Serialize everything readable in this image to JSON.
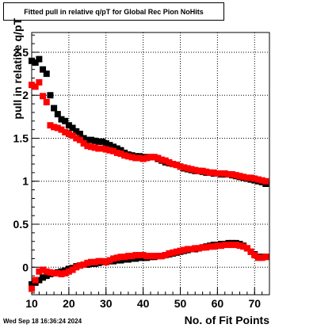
{
  "chart_data": {
    "type": "scatter",
    "title": "Fitted pull in relative q/pT for Global Rec Pion NoHits",
    "xlabel": "No. of Fit Points",
    "ylabel": "pull in relative q/pT",
    "xlim": [
      10,
      74
    ],
    "ylim": [
      -0.32,
      2.73
    ],
    "xticks": [
      10,
      20,
      30,
      40,
      50,
      60,
      70
    ],
    "yticks": [
      0,
      0.5,
      1,
      1.5,
      2,
      2.5
    ],
    "ytick_labels": [
      "0",
      "0.5",
      "1",
      "1.5",
      "2",
      "2.5"
    ],
    "grid": true,
    "series": [
      {
        "color": "#000000",
        "points": [
          [
            10,
            2.4
          ],
          [
            11,
            2.38
          ],
          [
            12,
            2.42
          ],
          [
            13,
            2.3
          ],
          [
            14,
            2.25
          ],
          [
            15,
            2.0
          ],
          [
            16,
            1.85
          ],
          [
            17,
            1.78
          ],
          [
            18,
            1.72
          ],
          [
            19,
            1.7
          ],
          [
            20,
            1.65
          ],
          [
            21,
            1.62
          ],
          [
            22,
            1.58
          ],
          [
            23,
            1.55
          ],
          [
            24,
            1.5
          ],
          [
            25,
            1.48
          ],
          [
            26,
            1.48
          ],
          [
            27,
            1.47
          ],
          [
            28,
            1.46
          ],
          [
            29,
            1.46
          ],
          [
            30,
            1.44
          ],
          [
            31,
            1.42
          ],
          [
            32,
            1.4
          ],
          [
            33,
            1.38
          ],
          [
            34,
            1.36
          ],
          [
            35,
            1.33
          ],
          [
            36,
            1.31
          ],
          [
            37,
            1.3
          ],
          [
            38,
            1.29
          ],
          [
            39,
            1.29
          ],
          [
            40,
            1.28
          ],
          [
            41,
            1.28
          ],
          [
            42,
            1.28
          ],
          [
            43,
            1.28
          ],
          [
            44,
            1.26
          ],
          [
            45,
            1.24
          ],
          [
            46,
            1.22
          ],
          [
            47,
            1.21
          ],
          [
            48,
            1.2
          ],
          [
            49,
            1.19
          ],
          [
            50,
            1.17
          ],
          [
            51,
            1.15
          ],
          [
            52,
            1.14
          ],
          [
            53,
            1.13
          ],
          [
            54,
            1.12
          ],
          [
            55,
            1.12
          ],
          [
            56,
            1.11
          ],
          [
            57,
            1.1
          ],
          [
            58,
            1.1
          ],
          [
            59,
            1.09
          ],
          [
            60,
            1.09
          ],
          [
            61,
            1.08
          ],
          [
            62,
            1.08
          ],
          [
            63,
            1.08
          ],
          [
            64,
            1.07
          ],
          [
            65,
            1.06
          ],
          [
            66,
            1.05
          ],
          [
            67,
            1.04
          ],
          [
            68,
            1.03
          ],
          [
            69,
            1.02
          ],
          [
            70,
            1.01
          ],
          [
            71,
            1.0
          ],
          [
            72,
            0.99
          ],
          [
            73,
            0.97
          ]
        ],
        "lower_points": [
          [
            10,
            -0.2
          ],
          [
            11,
            -0.18
          ],
          [
            12,
            -0.15
          ],
          [
            13,
            -0.12
          ],
          [
            14,
            -0.1
          ],
          [
            15,
            -0.08
          ],
          [
            16,
            -0.07
          ],
          [
            17,
            -0.06
          ],
          [
            18,
            -0.05
          ],
          [
            19,
            -0.04
          ],
          [
            20,
            -0.02
          ],
          [
            21,
            -0.01
          ],
          [
            22,
            0.01
          ],
          [
            23,
            0.02
          ],
          [
            24,
            0.03
          ],
          [
            25,
            0.03
          ],
          [
            26,
            0.04
          ],
          [
            27,
            0.04
          ],
          [
            28,
            0.05
          ],
          [
            29,
            0.06
          ],
          [
            30,
            0.06
          ],
          [
            31,
            0.07
          ],
          [
            32,
            0.07
          ],
          [
            33,
            0.08
          ],
          [
            34,
            0.08
          ],
          [
            35,
            0.09
          ],
          [
            36,
            0.09
          ],
          [
            37,
            0.1
          ],
          [
            38,
            0.1
          ],
          [
            39,
            0.11
          ],
          [
            40,
            0.11
          ],
          [
            41,
            0.11
          ],
          [
            42,
            0.12
          ],
          [
            43,
            0.12
          ],
          [
            44,
            0.13
          ],
          [
            45,
            0.13
          ],
          [
            46,
            0.14
          ],
          [
            47,
            0.15
          ],
          [
            48,
            0.16
          ],
          [
            49,
            0.17
          ],
          [
            50,
            0.18
          ],
          [
            51,
            0.19
          ],
          [
            52,
            0.2
          ],
          [
            53,
            0.21
          ],
          [
            54,
            0.21
          ],
          [
            55,
            0.22
          ],
          [
            56,
            0.23
          ],
          [
            57,
            0.24
          ],
          [
            58,
            0.25
          ],
          [
            59,
            0.26
          ],
          [
            60,
            0.26
          ],
          [
            61,
            0.27
          ],
          [
            62,
            0.27
          ],
          [
            63,
            0.28
          ],
          [
            64,
            0.28
          ],
          [
            65,
            0.28
          ],
          [
            66,
            0.27
          ],
          [
            67,
            0.25
          ],
          [
            68,
            0.22
          ],
          [
            69,
            0.18
          ],
          [
            70,
            0.15
          ],
          [
            71,
            0.12
          ],
          [
            72,
            0.12
          ],
          [
            73,
            0.12
          ]
        ]
      },
      {
        "color": "#ff0000",
        "points": [
          [
            10,
            2.12
          ],
          [
            11,
            2.1
          ],
          [
            12,
            2.15
          ],
          [
            13,
            1.99
          ],
          [
            14,
            1.92
          ],
          [
            15,
            1.65
          ],
          [
            16,
            1.63
          ],
          [
            17,
            1.62
          ],
          [
            18,
            1.6
          ],
          [
            19,
            1.57
          ],
          [
            20,
            1.55
          ],
          [
            21,
            1.53
          ],
          [
            22,
            1.5
          ],
          [
            23,
            1.48
          ],
          [
            24,
            1.44
          ],
          [
            25,
            1.41
          ],
          [
            26,
            1.4
          ],
          [
            27,
            1.39
          ],
          [
            28,
            1.38
          ],
          [
            29,
            1.38
          ],
          [
            30,
            1.37
          ],
          [
            31,
            1.36
          ],
          [
            32,
            1.35
          ],
          [
            33,
            1.33
          ],
          [
            34,
            1.32
          ],
          [
            35,
            1.3
          ],
          [
            36,
            1.29
          ],
          [
            37,
            1.28
          ],
          [
            38,
            1.27
          ],
          [
            39,
            1.27
          ],
          [
            40,
            1.26
          ],
          [
            41,
            1.27
          ],
          [
            42,
            1.28
          ],
          [
            43,
            1.28
          ],
          [
            44,
            1.27
          ],
          [
            45,
            1.25
          ],
          [
            46,
            1.24
          ],
          [
            47,
            1.22
          ],
          [
            48,
            1.2
          ],
          [
            49,
            1.19
          ],
          [
            50,
            1.17
          ],
          [
            51,
            1.16
          ],
          [
            52,
            1.15
          ],
          [
            53,
            1.14
          ],
          [
            54,
            1.13
          ],
          [
            55,
            1.12
          ],
          [
            56,
            1.12
          ],
          [
            57,
            1.11
          ],
          [
            58,
            1.1
          ],
          [
            59,
            1.1
          ],
          [
            60,
            1.09
          ],
          [
            61,
            1.09
          ],
          [
            62,
            1.09
          ],
          [
            63,
            1.08
          ],
          [
            64,
            1.08
          ],
          [
            65,
            1.07
          ],
          [
            66,
            1.06
          ],
          [
            67,
            1.05
          ],
          [
            68,
            1.04
          ],
          [
            69,
            1.04
          ],
          [
            70,
            1.03
          ],
          [
            71,
            1.02
          ],
          [
            72,
            1.01
          ],
          [
            73,
            1.0
          ]
        ],
        "lower_points": [
          [
            10,
            -0.25
          ],
          [
            11,
            -0.15
          ],
          [
            12,
            -0.05
          ],
          [
            13,
            -0.03
          ],
          [
            14,
            -0.05
          ],
          [
            15,
            -0.06
          ],
          [
            16,
            -0.07
          ],
          [
            17,
            -0.07
          ],
          [
            18,
            -0.08
          ],
          [
            19,
            -0.07
          ],
          [
            20,
            -0.05
          ],
          [
            21,
            -0.03
          ],
          [
            22,
            0.0
          ],
          [
            23,
            0.02
          ],
          [
            24,
            0.03
          ],
          [
            25,
            0.05
          ],
          [
            26,
            0.06
          ],
          [
            27,
            0.06
          ],
          [
            28,
            0.07
          ],
          [
            29,
            0.07
          ],
          [
            30,
            0.06
          ],
          [
            31,
            0.08
          ],
          [
            32,
            0.1
          ],
          [
            33,
            0.11
          ],
          [
            34,
            0.12
          ],
          [
            35,
            0.12
          ],
          [
            36,
            0.13
          ],
          [
            37,
            0.13
          ],
          [
            38,
            0.14
          ],
          [
            39,
            0.14
          ],
          [
            40,
            0.14
          ],
          [
            41,
            0.13
          ],
          [
            42,
            0.13
          ],
          [
            43,
            0.13
          ],
          [
            44,
            0.13
          ],
          [
            45,
            0.13
          ],
          [
            46,
            0.14
          ],
          [
            47,
            0.16
          ],
          [
            48,
            0.17
          ],
          [
            49,
            0.18
          ],
          [
            50,
            0.19
          ],
          [
            51,
            0.2
          ],
          [
            52,
            0.21
          ],
          [
            53,
            0.21
          ],
          [
            54,
            0.22
          ],
          [
            55,
            0.22
          ],
          [
            56,
            0.23
          ],
          [
            57,
            0.23
          ],
          [
            58,
            0.24
          ],
          [
            59,
            0.24
          ],
          [
            60,
            0.25
          ],
          [
            61,
            0.25
          ],
          [
            62,
            0.26
          ],
          [
            63,
            0.26
          ],
          [
            64,
            0.26
          ],
          [
            65,
            0.26
          ],
          [
            66,
            0.25
          ],
          [
            67,
            0.24
          ],
          [
            68,
            0.22
          ],
          [
            69,
            0.18
          ],
          [
            70,
            0.14
          ],
          [
            71,
            0.11
          ],
          [
            72,
            0.11
          ],
          [
            73,
            0.12
          ]
        ]
      }
    ]
  },
  "footer": {
    "timestamp": "Wed Sep 18 16:36:24 2024"
  }
}
